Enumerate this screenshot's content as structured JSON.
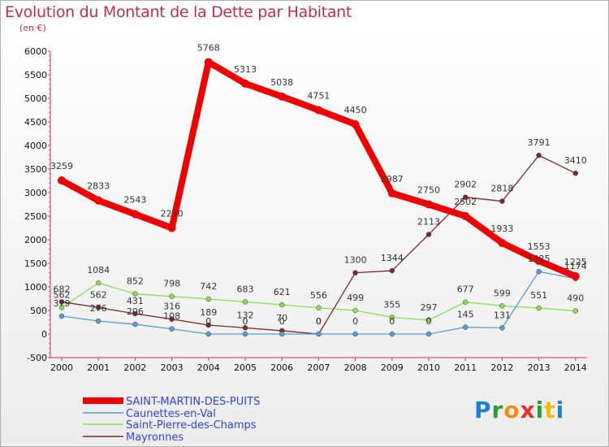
{
  "header": {
    "title": "Evolution du Montant de la Dette par Habitant",
    "unit": "(en €)"
  },
  "logo": {
    "text": "Proxiti"
  },
  "chart_data": {
    "type": "line",
    "title": "Evolution du Montant de la Dette par Habitant",
    "ylabel": "(en €)",
    "xlabel": "",
    "ylim": [
      -500,
      6000
    ],
    "yticks": [
      -500,
      0,
      500,
      1000,
      1500,
      2000,
      2500,
      3000,
      3500,
      4000,
      4500,
      5000,
      5500,
      6000
    ],
    "x": [
      "2000",
      "2001",
      "2002",
      "2003",
      "2004",
      "2005",
      "2006",
      "2007",
      "2008",
      "2009",
      "2010",
      "2011",
      "2012",
      "2013",
      "2014"
    ],
    "grid": false,
    "legend_position": "bottom-left",
    "series": [
      {
        "name": "SAINT-MARTIN-DES-PUITS",
        "color": "#ee0000",
        "values": [
          3259,
          2833,
          2543,
          2250,
          5768,
          5313,
          5038,
          4751,
          4450,
          2987,
          2750,
          2502,
          1933,
          1553,
          1225
        ]
      },
      {
        "name": "Caunettes-en-Val",
        "color": "#5a9bd5",
        "values": [
          379,
          276,
          206,
          108,
          0,
          0,
          0,
          0,
          0,
          0,
          0,
          145,
          131,
          1325,
          1174
        ]
      },
      {
        "name": "Saint-Pierre-des-Champs",
        "color": "#88dd55",
        "values": [
          562,
          1084,
          852,
          798,
          742,
          683,
          621,
          556,
          499,
          355,
          297,
          677,
          599,
          551,
          490
        ]
      },
      {
        "name": "Mayronnes",
        "color": "#7a2a2a",
        "values": [
          682,
          562,
          431,
          316,
          189,
          132,
          70,
          0,
          1300,
          1344,
          2113,
          2902,
          2818,
          3791,
          3410
        ]
      }
    ],
    "data_labels": [
      [
        "3259",
        "2833",
        "2543",
        "2250",
        "5768",
        "5313",
        "5038",
        "4751",
        "4450",
        "2987",
        "2750",
        "2502",
        "1933",
        "1553",
        "1225"
      ],
      [
        "379",
        "276",
        "206",
        "108",
        "0",
        "0",
        "0",
        "0",
        "0",
        "0",
        "0",
        "145",
        "131",
        "1325",
        "1174"
      ],
      [
        "562",
        "1084",
        "852",
        "798",
        "742",
        "683",
        "621",
        "556",
        "499",
        "355",
        "297",
        "677",
        "599",
        "551",
        "490"
      ],
      [
        "682",
        "562",
        "431",
        "316",
        "189",
        "132",
        "70",
        "0",
        "1300",
        "1344",
        "2113",
        "2902",
        "2818",
        "3791",
        "3410"
      ]
    ]
  }
}
